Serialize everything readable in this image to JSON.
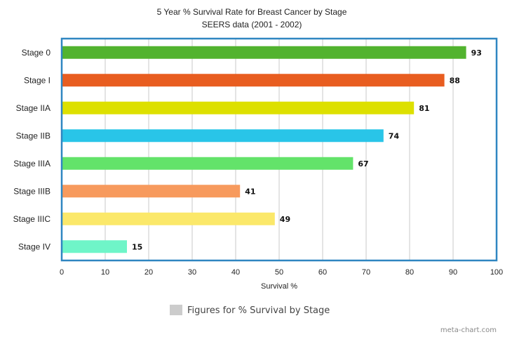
{
  "chart_data": {
    "type": "bar",
    "orientation": "horizontal",
    "title": "5 Year % Survival Rate for Breast Cancer by Stage",
    "subtitle": "SEERS data (2001 - 2002)",
    "categories": [
      "Stage 0",
      "Stage I",
      "Stage IIA",
      "Stage IIB",
      "Stage IIIA",
      "Stage IIIB",
      "Stage IIIC",
      "Stage IV"
    ],
    "values": [
      93,
      88,
      81,
      74,
      67,
      41,
      49,
      15
    ],
    "value_labels": [
      "93",
      "88",
      "81",
      "74",
      "67",
      "41",
      "49",
      "15"
    ],
    "colors": [
      "#52b32f",
      "#e85d20",
      "#dde000",
      "#29c5e8",
      "#63e36a",
      "#f79a5d",
      "#fbe86a",
      "#6ff5c8"
    ],
    "xlabel": "Survival %",
    "ylabel": "",
    "xlim": [
      0,
      100
    ],
    "xticks": [
      "0",
      "10",
      "20",
      "30",
      "40",
      "50",
      "60",
      "70",
      "80",
      "90",
      "100"
    ],
    "grid": true,
    "legend": {
      "label": "Figures for % Survival by Stage",
      "placement": "bottom-center",
      "swatch_color": "#cccccc"
    },
    "frame_color": "#2f86c1"
  },
  "watermark": "meta-chart.com"
}
